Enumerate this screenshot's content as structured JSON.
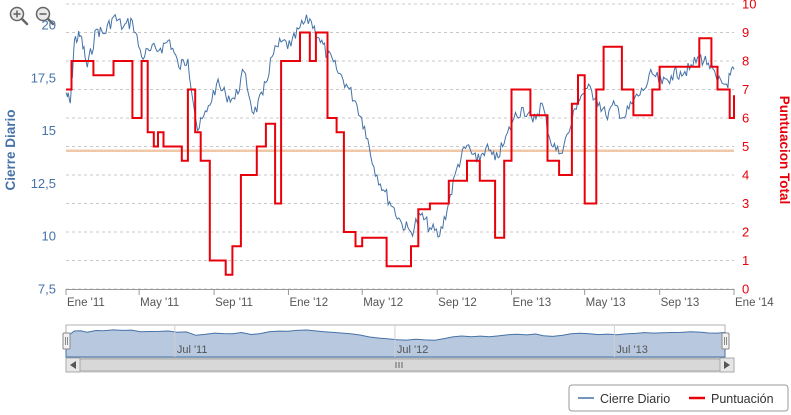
{
  "toolbar": {
    "zoom_in_icon": "zoom-in-icon",
    "zoom_out_icon": "zoom-out-icon"
  },
  "colors": {
    "price": "#4572A7",
    "score": "#E8000B",
    "threshold": "#F0C8A8",
    "grid": "#C8C8C8",
    "navigator_fill": "#B8C8DE",
    "navigator_line": "#4572A7"
  },
  "chart_data": {
    "type": "line",
    "xlabel": "",
    "x_ticks": [
      "Ene '11",
      "May '11",
      "Sep '11",
      "Ene '12",
      "May '12",
      "Sep '12",
      "Ene '13",
      "May '13",
      "Sep '13",
      "Ene '14"
    ],
    "x_range": [
      "2011-01-01",
      "2014-01-01"
    ],
    "y_left": {
      "label": "Cierre Diario",
      "range": [
        7.5,
        21
      ],
      "ticks": [
        "7,5",
        "10",
        "12,5",
        "15",
        "17,5",
        "20"
      ],
      "tick_values": [
        7.5,
        10,
        12.5,
        15,
        17.5,
        20
      ]
    },
    "y_right": {
      "label": "Puntuacion Total",
      "range": [
        0,
        10
      ],
      "ticks": [
        "0",
        "1",
        "2",
        "3",
        "4",
        "5",
        "6",
        "7",
        "8",
        "9",
        "10"
      ]
    },
    "threshold_line": {
      "axis": "right",
      "value": 4.85
    },
    "grid": true,
    "legend_position": "bottom-right",
    "series": [
      {
        "name": "Cierre Diario",
        "axis": "left",
        "points": [
          [
            "2011-01-01",
            16.8
          ],
          [
            "2011-01-08",
            16.3
          ],
          [
            "2011-01-15",
            19.3
          ],
          [
            "2011-01-25",
            19.5
          ],
          [
            "2011-02-05",
            18.0
          ],
          [
            "2011-02-20",
            19.8
          ],
          [
            "2011-03-05",
            19.6
          ],
          [
            "2011-03-20",
            20.4
          ],
          [
            "2011-04-05",
            19.9
          ],
          [
            "2011-04-20",
            20.2
          ],
          [
            "2011-05-05",
            18.5
          ],
          [
            "2011-05-20",
            18.8
          ],
          [
            "2011-06-05",
            18.9
          ],
          [
            "2011-06-20",
            19.3
          ],
          [
            "2011-07-05",
            18.0
          ],
          [
            "2011-07-20",
            18.4
          ],
          [
            "2011-08-05",
            15.0
          ],
          [
            "2011-08-20",
            15.9
          ],
          [
            "2011-09-05",
            17.2
          ],
          [
            "2011-09-20",
            16.7
          ],
          [
            "2011-10-05",
            16.5
          ],
          [
            "2011-10-20",
            17.8
          ],
          [
            "2011-11-05",
            15.8
          ],
          [
            "2011-11-20",
            16.7
          ],
          [
            "2011-12-05",
            18.5
          ],
          [
            "2011-12-20",
            19.2
          ],
          [
            "2012-01-05",
            19.0
          ],
          [
            "2012-01-20",
            19.9
          ],
          [
            "2012-02-05",
            20.3
          ],
          [
            "2012-02-20",
            19.4
          ],
          [
            "2012-03-05",
            18.6
          ],
          [
            "2012-03-20",
            17.9
          ],
          [
            "2012-04-05",
            17.2
          ],
          [
            "2012-04-20",
            16.4
          ],
          [
            "2012-05-05",
            15.2
          ],
          [
            "2012-05-20",
            13.3
          ],
          [
            "2012-06-05",
            12.2
          ],
          [
            "2012-06-20",
            11.4
          ],
          [
            "2012-07-05",
            10.6
          ],
          [
            "2012-07-20",
            10.2
          ],
          [
            "2012-08-05",
            11.0
          ],
          [
            "2012-08-20",
            10.4
          ],
          [
            "2012-09-05",
            10.0
          ],
          [
            "2012-09-20",
            11.6
          ],
          [
            "2012-10-05",
            13.4
          ],
          [
            "2012-10-20",
            14.3
          ],
          [
            "2012-11-05",
            13.5
          ],
          [
            "2012-11-20",
            14.2
          ],
          [
            "2012-12-05",
            13.6
          ],
          [
            "2012-12-20",
            14.4
          ],
          [
            "2013-01-05",
            15.6
          ],
          [
            "2013-01-20",
            16.1
          ],
          [
            "2013-02-05",
            15.4
          ],
          [
            "2013-02-20",
            16.3
          ],
          [
            "2013-03-05",
            14.6
          ],
          [
            "2013-03-20",
            13.9
          ],
          [
            "2013-04-05",
            14.9
          ],
          [
            "2013-04-20",
            16.5
          ],
          [
            "2013-05-05",
            17.0
          ],
          [
            "2013-05-20",
            16.6
          ],
          [
            "2013-06-05",
            15.7
          ],
          [
            "2013-06-20",
            16.2
          ],
          [
            "2013-07-05",
            15.6
          ],
          [
            "2013-07-20",
            16.4
          ],
          [
            "2013-08-05",
            16.9
          ],
          [
            "2013-08-20",
            17.7
          ],
          [
            "2013-09-05",
            17.2
          ],
          [
            "2013-09-20",
            17.6
          ],
          [
            "2013-10-05",
            17.8
          ],
          [
            "2013-10-20",
            17.9
          ],
          [
            "2013-11-05",
            18.5
          ],
          [
            "2013-11-20",
            18.2
          ],
          [
            "2013-12-05",
            17.3
          ],
          [
            "2013-12-20",
            17.2
          ],
          [
            "2014-01-01",
            17.9
          ]
        ]
      },
      {
        "name": "Puntuación",
        "axis": "right",
        "steps": [
          [
            "2011-01-01",
            7
          ],
          [
            "2011-01-10",
            8
          ],
          [
            "2011-02-15",
            7.5
          ],
          [
            "2011-03-20",
            8
          ],
          [
            "2011-04-20",
            6
          ],
          [
            "2011-05-05",
            8
          ],
          [
            "2011-05-15",
            5.5
          ],
          [
            "2011-05-25",
            5
          ],
          [
            "2011-06-01",
            5.5
          ],
          [
            "2011-06-10",
            5
          ],
          [
            "2011-07-10",
            4.5
          ],
          [
            "2011-07-20",
            7
          ],
          [
            "2011-08-01",
            5.5
          ],
          [
            "2011-08-10",
            4.5
          ],
          [
            "2011-08-25",
            1
          ],
          [
            "2011-09-20",
            0.5
          ],
          [
            "2011-10-01",
            1.5
          ],
          [
            "2011-10-15",
            4
          ],
          [
            "2011-11-10",
            5
          ],
          [
            "2011-11-25",
            5.8
          ],
          [
            "2011-12-10",
            3
          ],
          [
            "2011-12-20",
            8
          ],
          [
            "2012-01-20",
            9
          ],
          [
            "2012-02-05",
            8
          ],
          [
            "2012-02-15",
            9
          ],
          [
            "2012-03-05",
            6
          ],
          [
            "2012-03-20",
            5.5
          ],
          [
            "2012-04-01",
            2
          ],
          [
            "2012-04-20",
            1.5
          ],
          [
            "2012-05-01",
            1.8
          ],
          [
            "2012-06-10",
            0.8
          ],
          [
            "2012-07-20",
            1.5
          ],
          [
            "2012-08-01",
            2.8
          ],
          [
            "2012-08-20",
            3
          ],
          [
            "2012-09-20",
            3.8
          ],
          [
            "2012-10-20",
            4.5
          ],
          [
            "2012-11-10",
            3.8
          ],
          [
            "2012-12-05",
            1.8
          ],
          [
            "2012-12-20",
            4.5
          ],
          [
            "2013-01-01",
            7
          ],
          [
            "2013-02-01",
            6.1
          ],
          [
            "2013-03-01",
            4.5
          ],
          [
            "2013-03-20",
            4
          ],
          [
            "2013-04-10",
            6.5
          ],
          [
            "2013-04-20",
            7.5
          ],
          [
            "2013-05-01",
            3
          ],
          [
            "2013-05-20",
            7
          ],
          [
            "2013-06-01",
            8.5
          ],
          [
            "2013-07-01",
            7
          ],
          [
            "2013-07-20",
            6.1
          ],
          [
            "2013-08-20",
            7
          ],
          [
            "2013-09-01",
            7.8
          ],
          [
            "2013-11-05",
            8.8
          ],
          [
            "2013-11-25",
            7.8
          ],
          [
            "2013-12-05",
            7
          ],
          [
            "2013-12-25",
            6
          ],
          [
            "2014-01-01",
            6.8
          ]
        ]
      }
    ],
    "navigator": {
      "x_ticks": [
        "Jul '11",
        "Jul '12",
        "Jul '13"
      ],
      "range": [
        "2011-01-01",
        "2014-01-01"
      ]
    }
  },
  "legend": {
    "items": [
      {
        "label": "Cierre Diario"
      },
      {
        "label": "Puntuación"
      }
    ]
  }
}
